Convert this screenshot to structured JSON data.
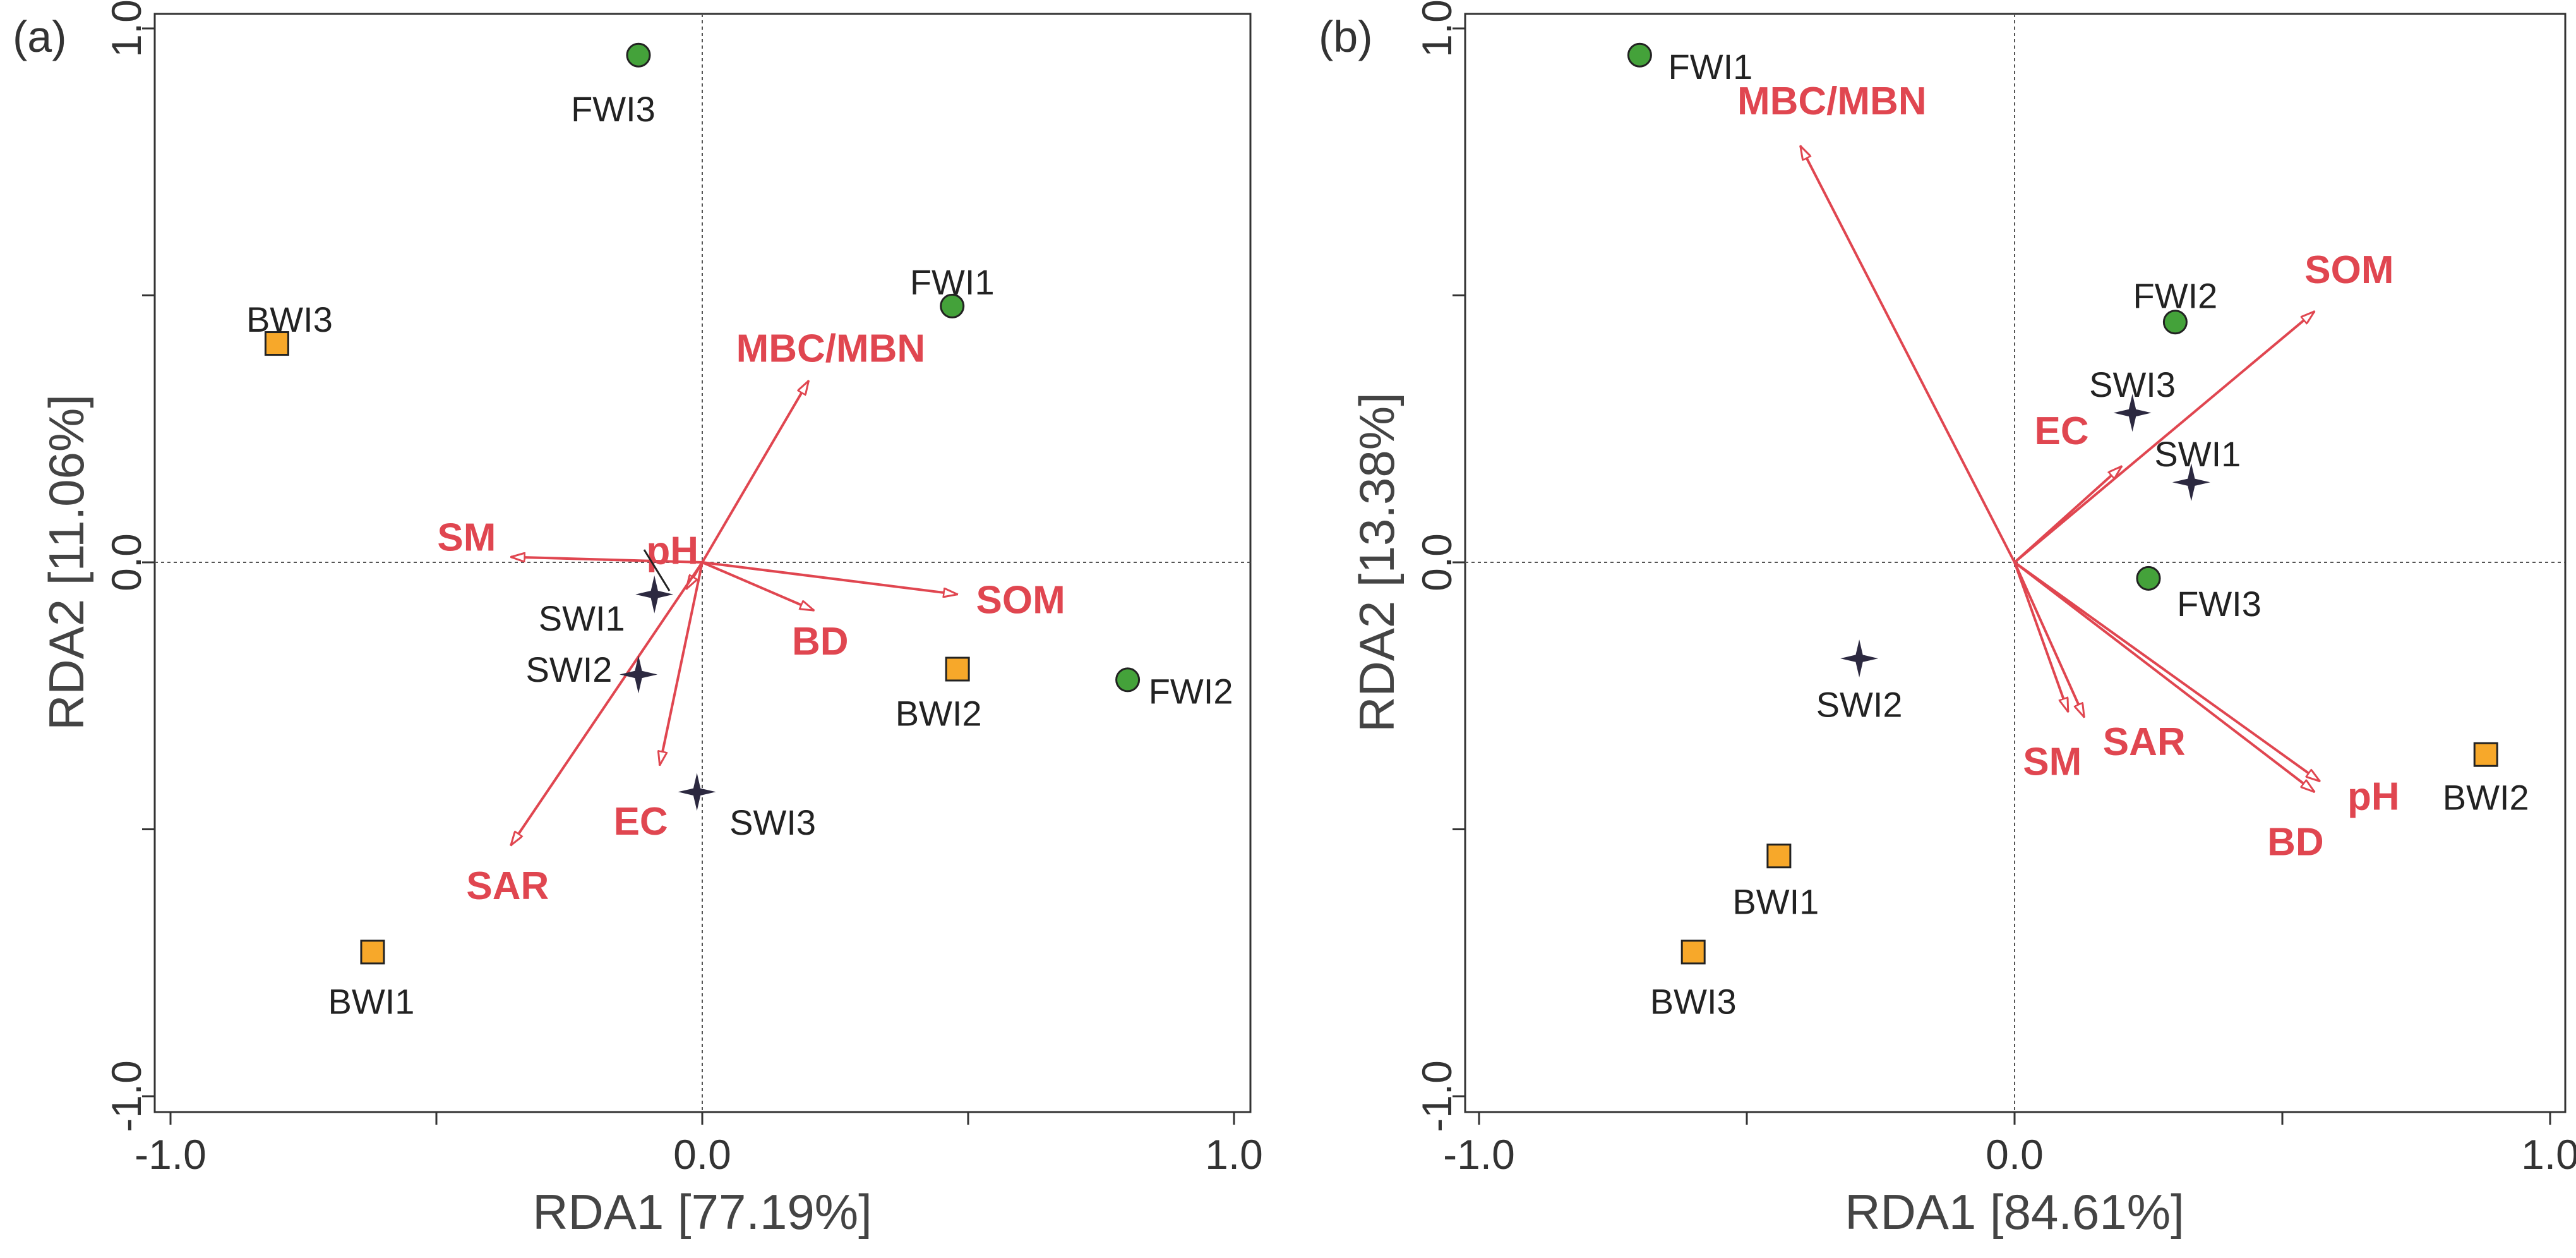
{
  "figure": {
    "colors": {
      "vector": "#e04650",
      "circle": "#44a23a",
      "square": "#f7a82a",
      "star": "#2c2940"
    }
  },
  "chart_data": [
    {
      "type": "scatter",
      "panel_label": "(a)",
      "xlabel": "RDA1 [77.19%]",
      "ylabel": "RDA2 [11.06%]",
      "xlim": [
        -1.0,
        1.0
      ],
      "ylim": [
        -1.0,
        1.0
      ],
      "x_ticks": [
        -1.0,
        -0.5,
        0.0,
        0.5,
        1.0
      ],
      "y_ticks": [
        -1.0,
        -0.5,
        0.0,
        0.5,
        1.0
      ],
      "x_tick_labels": [
        "-1.0",
        "",
        "0.0",
        "",
        "1.0"
      ],
      "y_tick_labels": [
        "-1.0",
        "",
        "0.0",
        "",
        "1.0"
      ],
      "grid": false,
      "zero_lines": true,
      "vectors": [
        {
          "label": "MBC/MBN",
          "x": 0.2,
          "y": 0.34
        },
        {
          "label": "SM",
          "x": -0.36,
          "y": 0.01
        },
        {
          "label": "pH",
          "x": -0.03,
          "y": -0.05
        },
        {
          "label": "SOM",
          "x": 0.48,
          "y": -0.06
        },
        {
          "label": "BD",
          "x": 0.21,
          "y": -0.09
        },
        {
          "label": "EC",
          "x": -0.08,
          "y": -0.38
        },
        {
          "label": "SAR",
          "x": -0.36,
          "y": -0.53
        }
      ],
      "sites": [
        {
          "label": "FWI3",
          "marker": "circle",
          "x": -0.12,
          "y": 0.95
        },
        {
          "label": "FWI1",
          "marker": "circle",
          "x": 0.47,
          "y": 0.48
        },
        {
          "label": "FWI2",
          "marker": "circle",
          "x": 0.8,
          "y": -0.22
        },
        {
          "label": "BWI3",
          "marker": "square",
          "x": -0.8,
          "y": 0.41
        },
        {
          "label": "BWI2",
          "marker": "square",
          "x": 0.48,
          "y": -0.2
        },
        {
          "label": "BWI1",
          "marker": "square",
          "x": -0.62,
          "y": -0.73
        },
        {
          "label": "SWI1",
          "marker": "star",
          "x": -0.09,
          "y": -0.06
        },
        {
          "label": "SWI2",
          "marker": "star",
          "x": -0.12,
          "y": -0.21
        },
        {
          "label": "SWI3",
          "marker": "star",
          "x": -0.01,
          "y": -0.43
        }
      ]
    },
    {
      "type": "scatter",
      "panel_label": "(b)",
      "xlabel": "RDA1 [84.61%]",
      "ylabel": "RDA2 [13.38%]",
      "xlim": [
        -1.0,
        1.0
      ],
      "ylim": [
        -1.0,
        1.0
      ],
      "x_ticks": [
        -1.0,
        -0.5,
        0.0,
        0.5,
        1.0
      ],
      "y_ticks": [
        -1.0,
        -0.5,
        0.0,
        0.5,
        1.0
      ],
      "x_tick_labels": [
        "-1.0",
        "",
        "0.0",
        "",
        "1.0"
      ],
      "y_tick_labels": [
        "-1.0",
        "",
        "0.0",
        "",
        "1.0"
      ],
      "grid": false,
      "zero_lines": true,
      "vectors": [
        {
          "label": "MBC/MBN",
          "x": -0.4,
          "y": 0.78
        },
        {
          "label": "SOM",
          "x": 0.56,
          "y": 0.47
        },
        {
          "label": "EC",
          "x": 0.2,
          "y": 0.18
        },
        {
          "label": "SM",
          "x": 0.1,
          "y": -0.28
        },
        {
          "label": "SAR",
          "x": 0.13,
          "y": -0.29
        },
        {
          "label": "pH",
          "x": 0.57,
          "y": -0.41
        },
        {
          "label": "BD",
          "x": 0.56,
          "y": -0.43
        }
      ],
      "sites": [
        {
          "label": "FWI1",
          "marker": "circle",
          "x": -0.7,
          "y": 0.95
        },
        {
          "label": "FWI2",
          "marker": "circle",
          "x": 0.3,
          "y": 0.45
        },
        {
          "label": "FWI3",
          "marker": "circle",
          "x": 0.25,
          "y": -0.03
        },
        {
          "label": "SWI3",
          "marker": "star",
          "x": 0.22,
          "y": 0.28
        },
        {
          "label": "SWI1",
          "marker": "star",
          "x": 0.33,
          "y": 0.15
        },
        {
          "label": "SWI2",
          "marker": "star",
          "x": -0.29,
          "y": -0.18
        },
        {
          "label": "BWI2",
          "marker": "square",
          "x": 0.88,
          "y": -0.36
        },
        {
          "label": "BWI1",
          "marker": "square",
          "x": -0.44,
          "y": -0.55
        },
        {
          "label": "BWI3",
          "marker": "square",
          "x": -0.6,
          "y": -0.73
        }
      ]
    }
  ]
}
